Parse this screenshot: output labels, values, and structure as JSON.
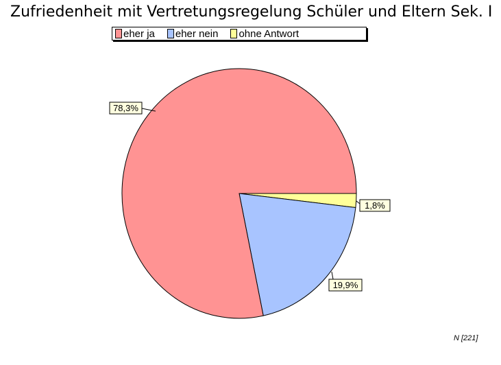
{
  "title": "Zufriedenheit mit Vertretungsregelung Schüler und Eltern Sek. I",
  "footer": "N [221]",
  "chart_data": {
    "type": "pie",
    "title": "Zufriedenheit mit Vertretungsregelung Schüler und Eltern Sek. I",
    "legend_position": "top-center",
    "slices": [
      {
        "label": "eher ja",
        "value": 78.3,
        "display": "78,3%",
        "color": "#ff9393"
      },
      {
        "label": "eher nein",
        "value": 19.9,
        "display": "19,9%",
        "color": "#a8c4ff"
      },
      {
        "label": "ohne Antwort",
        "value": 1.8,
        "display": "1,8%",
        "color": "#ffff99"
      }
    ]
  }
}
